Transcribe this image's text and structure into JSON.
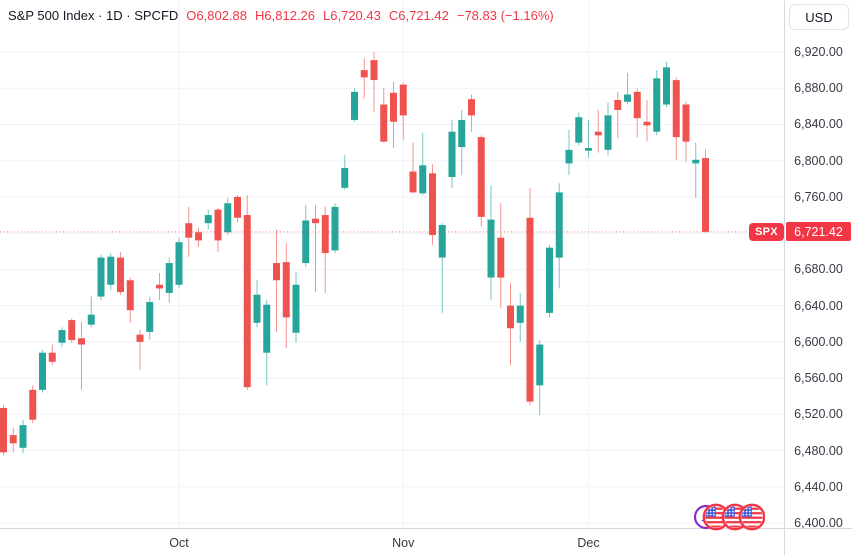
{
  "header": {
    "left": "S&P 500 Index · 1D · SPCFD",
    "ohlc": [
      {
        "k": "O",
        "v": "6,802.88"
      },
      {
        "k": "H",
        "v": "6,812.26"
      },
      {
        "k": "L",
        "v": "6,720.43"
      },
      {
        "k": "C",
        "v": "6,721.42"
      }
    ],
    "change": "−78.83 (−1.16%)"
  },
  "currency_button": {
    "label": "USD"
  },
  "price_label": {
    "symbol": "SPX",
    "value": "6,721.42",
    "price": 6721.42,
    "color": "#f23645"
  },
  "logo": {
    "circles": [
      "purple-ring",
      "us-flag",
      "us-flag",
      "us-flag"
    ]
  },
  "chart_data": {
    "type": "candlestick",
    "title": "S&P 500 Index",
    "interval": "1D",
    "symbol": "SPCFD",
    "grid": true,
    "colors": {
      "up": "#26a69a",
      "down": "#ef5350",
      "last_price_line": "#f23645",
      "grid": "#f0f3fa"
    },
    "price_axis": {
      "min": 6400,
      "max": 6920,
      "step": 40,
      "ticks": [
        {
          "v": 6920,
          "label": "6,920.00"
        },
        {
          "v": 6880,
          "label": "6,880.00"
        },
        {
          "v": 6840,
          "label": "6,840.00"
        },
        {
          "v": 6800,
          "label": "6,800.00"
        },
        {
          "v": 6760,
          "label": "6,760.00"
        },
        {
          "v": 6680,
          "label": "6,680.00"
        },
        {
          "v": 6640,
          "label": "6,640.00"
        },
        {
          "v": 6600,
          "label": "6,600.00"
        },
        {
          "v": 6560,
          "label": "6,560.00"
        },
        {
          "v": 6520,
          "label": "6,520.00"
        },
        {
          "v": 6480,
          "label": "6,480.00"
        },
        {
          "v": 6440,
          "label": "6,440.00"
        },
        {
          "v": 6400,
          "label": "6,400.00"
        }
      ]
    },
    "time_axis": {
      "labels": [
        {
          "text": "Oct",
          "candle_index": 18
        },
        {
          "text": "Nov",
          "candle_index": 41
        },
        {
          "text": "Dec",
          "candle_index": 60
        }
      ]
    },
    "last_price": 6721.42,
    "candles": [
      [
        6527,
        6530,
        6475,
        6478
      ],
      [
        6497,
        6505,
        6478,
        6488
      ],
      [
        6483,
        6514,
        6477,
        6508
      ],
      [
        6547,
        6552,
        6510,
        6514
      ],
      [
        6547,
        6591,
        6544,
        6588
      ],
      [
        6588,
        6597,
        6574,
        6578
      ],
      [
        6599,
        6616,
        6594,
        6613
      ],
      [
        6624,
        6626,
        6599,
        6602
      ],
      [
        6604,
        6622,
        6547,
        6597
      ],
      [
        6619,
        6650,
        6616,
        6630
      ],
      [
        6650,
        6696,
        6646,
        6693
      ],
      [
        6663,
        6698,
        6657,
        6694
      ],
      [
        6693,
        6699,
        6652,
        6655
      ],
      [
        6668,
        6671,
        6621,
        6635
      ],
      [
        6608,
        6613,
        6569,
        6600
      ],
      [
        6611,
        6650,
        6602,
        6644
      ],
      [
        6663,
        6676,
        6646,
        6659
      ],
      [
        6654,
        6693,
        6643,
        6687
      ],
      [
        6663,
        6715,
        6659,
        6710
      ],
      [
        6731,
        6749,
        6694,
        6715
      ],
      [
        6721,
        6726,
        6705,
        6712
      ],
      [
        6731,
        6746,
        6724,
        6740
      ],
      [
        6746,
        6748,
        6699,
        6712
      ],
      [
        6721,
        6759,
        6718,
        6753
      ],
      [
        6760,
        6762,
        6732,
        6737
      ],
      [
        6740,
        6762,
        6547,
        6550
      ],
      [
        6621,
        6668,
        6616,
        6652
      ],
      [
        6588,
        6646,
        6552,
        6641
      ],
      [
        6687,
        6724,
        6611,
        6668
      ],
      [
        6688,
        6709,
        6593,
        6627
      ],
      [
        6610,
        6677,
        6599,
        6663
      ],
      [
        6687,
        6751,
        6683,
        6734
      ],
      [
        6736,
        6751,
        6655,
        6731
      ],
      [
        6740,
        6749,
        6654,
        6698
      ],
      [
        6701,
        6753,
        6698,
        6749
      ],
      [
        6770,
        6806,
        6768,
        6792
      ],
      [
        6845,
        6880,
        6843,
        6876
      ],
      [
        6900,
        6913,
        6869,
        6892
      ],
      [
        6911,
        6920,
        6854,
        6889
      ],
      [
        6862,
        6880,
        6820,
        6821
      ],
      [
        6875,
        6887,
        6814,
        6843
      ],
      [
        6884,
        6886,
        6823,
        6850
      ],
      [
        6788,
        6820,
        6764,
        6765
      ],
      [
        6764,
        6831,
        6762,
        6795
      ],
      [
        6786,
        6796,
        6707,
        6718
      ],
      [
        6693,
        6731,
        6632,
        6729
      ],
      [
        6782,
        6845,
        6770,
        6832
      ],
      [
        6815,
        6856,
        6784,
        6845
      ],
      [
        6868,
        6873,
        6832,
        6850
      ],
      [
        6826,
        6828,
        6727,
        6738
      ],
      [
        6671,
        6773,
        6646,
        6735
      ],
      [
        6715,
        6753,
        6637,
        6671
      ],
      [
        6640,
        6665,
        6574,
        6615
      ],
      [
        6621,
        6654,
        6600,
        6640
      ],
      [
        6737,
        6770,
        6530,
        6534
      ],
      [
        6552,
        6602,
        6519,
        6597
      ],
      [
        6632,
        6707,
        6627,
        6704
      ],
      [
        6693,
        6775,
        6659,
        6765
      ],
      [
        6797,
        6834,
        6784,
        6812
      ],
      [
        6820,
        6853,
        6817,
        6848
      ],
      [
        6811,
        6845,
        6803,
        6814
      ],
      [
        6832,
        6856,
        6809,
        6828
      ],
      [
        6812,
        6864,
        6806,
        6850
      ],
      [
        6867,
        6876,
        6825,
        6856
      ],
      [
        6865,
        6897,
        6862,
        6873
      ],
      [
        6876,
        6880,
        6826,
        6847
      ],
      [
        6843,
        6867,
        6821,
        6839
      ],
      [
        6832,
        6900,
        6828,
        6891
      ],
      [
        6862,
        6909,
        6859,
        6903
      ],
      [
        6889,
        6892,
        6801,
        6826
      ],
      [
        6862,
        6865,
        6799,
        6821
      ],
      [
        6797,
        6820,
        6759,
        6801
      ],
      [
        6802.88,
        6812.26,
        6720.43,
        6721.42
      ]
    ]
  }
}
